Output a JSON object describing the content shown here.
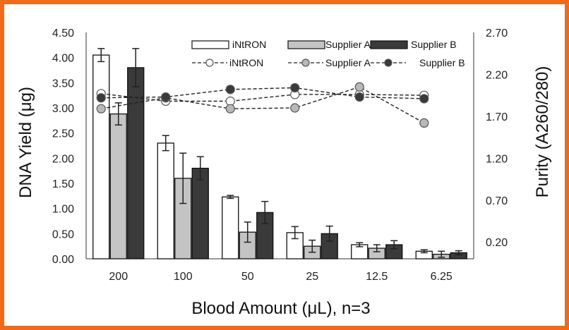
{
  "chart_data": {
    "type": "bar",
    "xlabel": "Blood Amount (μL), n=3",
    "ylabel": "DNA Yield (μg)",
    "y2label": "Purity (A260/280)",
    "categories": [
      "200",
      "100",
      "50",
      "25",
      "12.5",
      "6.25"
    ],
    "ylim": [
      0,
      4.5
    ],
    "yticks": [
      "0.00",
      "0.50",
      "1.00",
      "1.50",
      "2.00",
      "2.50",
      "3.00",
      "3.50",
      "4.00",
      "4.50"
    ],
    "y2lim": [
      0,
      2.7
    ],
    "y2ticks": [
      "0.20",
      "0.70",
      "1.20",
      "1.70",
      "2.20",
      "2.70"
    ],
    "grid": false,
    "legend_position": "top",
    "bar_series": [
      {
        "name": "iNtRON",
        "color": "#ffffff",
        "values": [
          4.05,
          2.3,
          1.23,
          0.52,
          0.28,
          0.15
        ],
        "errors": [
          0.13,
          0.15,
          0.03,
          0.12,
          0.04,
          0.03
        ]
      },
      {
        "name": "Supplier A",
        "color": "#c4c4c4",
        "values": [
          2.88,
          1.6,
          0.53,
          0.25,
          0.21,
          0.09
        ],
        "errors": [
          0.22,
          0.5,
          0.2,
          0.12,
          0.07,
          0.06
        ]
      },
      {
        "name": "Supplier B",
        "color": "#3a3a3a",
        "values": [
          3.8,
          1.8,
          0.92,
          0.5,
          0.28,
          0.12
        ],
        "errors": [
          0.38,
          0.23,
          0.22,
          0.15,
          0.08,
          0.04
        ]
      }
    ],
    "line_series": [
      {
        "name": "iNtRON",
        "marker_color": "#ffffff",
        "values": [
          1.97,
          1.88,
          1.88,
          1.96,
          1.96,
          1.95
        ]
      },
      {
        "name": "Supplier A",
        "marker_color": "#b8b8b8",
        "values": [
          1.79,
          1.92,
          1.79,
          1.8,
          2.05,
          1.62
        ]
      },
      {
        "name": "Supplier B",
        "marker_color": "#3a3a3a",
        "values": [
          1.92,
          1.93,
          2.02,
          2.04,
          1.93,
          1.91
        ]
      }
    ]
  }
}
